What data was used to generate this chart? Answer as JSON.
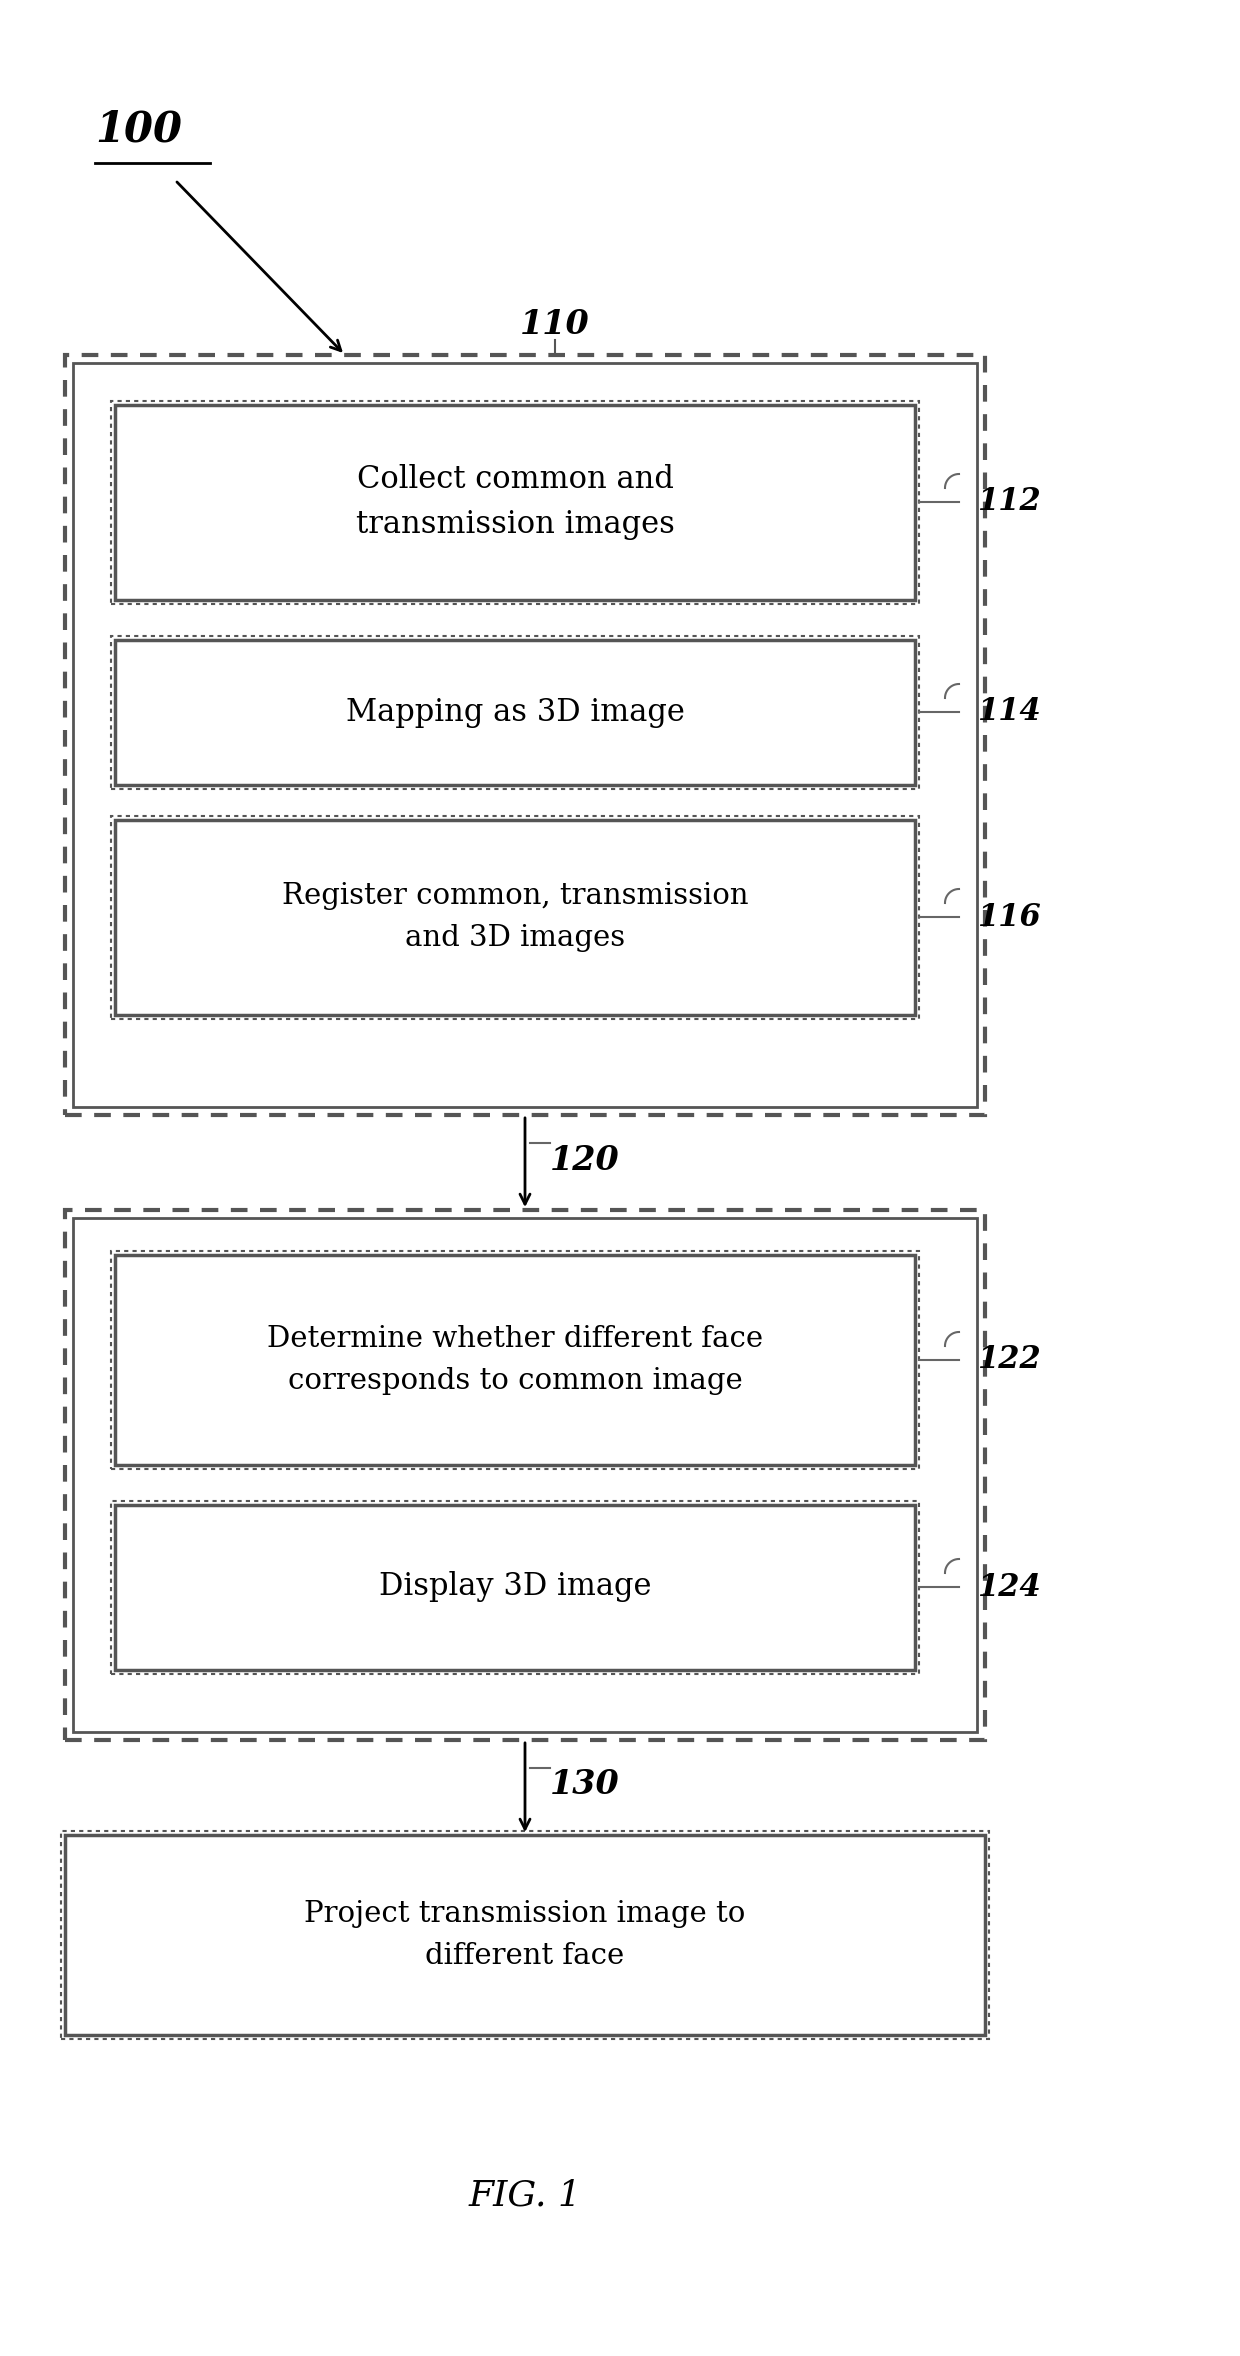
{
  "bg_color": "#ffffff",
  "fig_label": "FIG. 1",
  "ref_100": "100",
  "ref_110": "110",
  "ref_112": "112",
  "ref_114": "114",
  "ref_116": "116",
  "ref_120": "120",
  "ref_122": "122",
  "ref_124": "124",
  "ref_130": "130",
  "box112_text": "Collect common and\ntransmission images",
  "box114_text": "Mapping as 3D image",
  "box116_text": "Register common, transmission\nand 3D images",
  "box122_text": "Determine whether different face\ncorresponds to common image",
  "box124_text": "Display 3D image",
  "box130_text": "Project transmission image to\ndifferent face",
  "font_size_box": 22,
  "font_size_ref": 22,
  "font_size_fig": 26,
  "font_size_100": 30,
  "edge_color_outer": "#555555",
  "edge_color_inner": "#444444",
  "text_color": "#000000"
}
